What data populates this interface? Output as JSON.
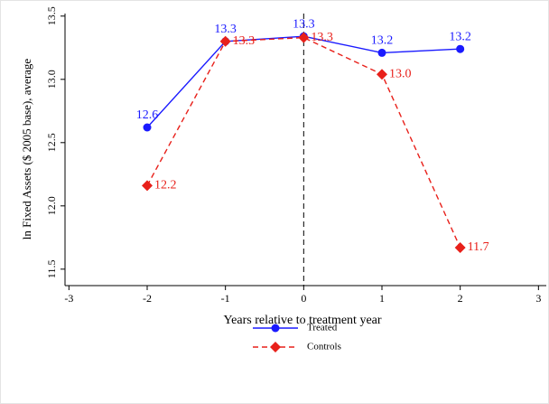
{
  "chart_data": {
    "type": "line",
    "xlabel": "Years relative to treatment year",
    "ylabel": "ln Fixed Assets ($ 2005 base), average",
    "x": [
      -2,
      -1,
      0,
      1,
      2
    ],
    "series": [
      {
        "name": "Treated",
        "color": "#1a1aff",
        "marker": "circle",
        "dash": false,
        "label_pos": "above",
        "values": [
          12.62,
          13.3,
          13.34,
          13.21,
          13.24
        ],
        "value_labels": [
          "12.6",
          "13.3",
          "13.3",
          "13.2",
          "13.2"
        ]
      },
      {
        "name": "Controls",
        "color": "#e8201a",
        "marker": "diamond",
        "dash": true,
        "label_pos": "right",
        "values": [
          12.16,
          13.3,
          13.33,
          13.04,
          11.67
        ],
        "value_labels": [
          "12.2",
          "13.3",
          "13.3",
          "13.0",
          "11.7"
        ]
      }
    ],
    "xlim": [
      -3.05,
      3.1
    ],
    "xticks": [
      -3,
      -2,
      -1,
      0,
      1,
      2,
      3
    ],
    "ylim": [
      11.37,
      13.52
    ],
    "yticks": [
      11.5,
      {
        "value": 12,
        "label": "12.0"
      },
      12.5,
      {
        "value": 13,
        "label": "13.0"
      },
      13.5
    ],
    "vline": 0,
    "grid": false
  }
}
